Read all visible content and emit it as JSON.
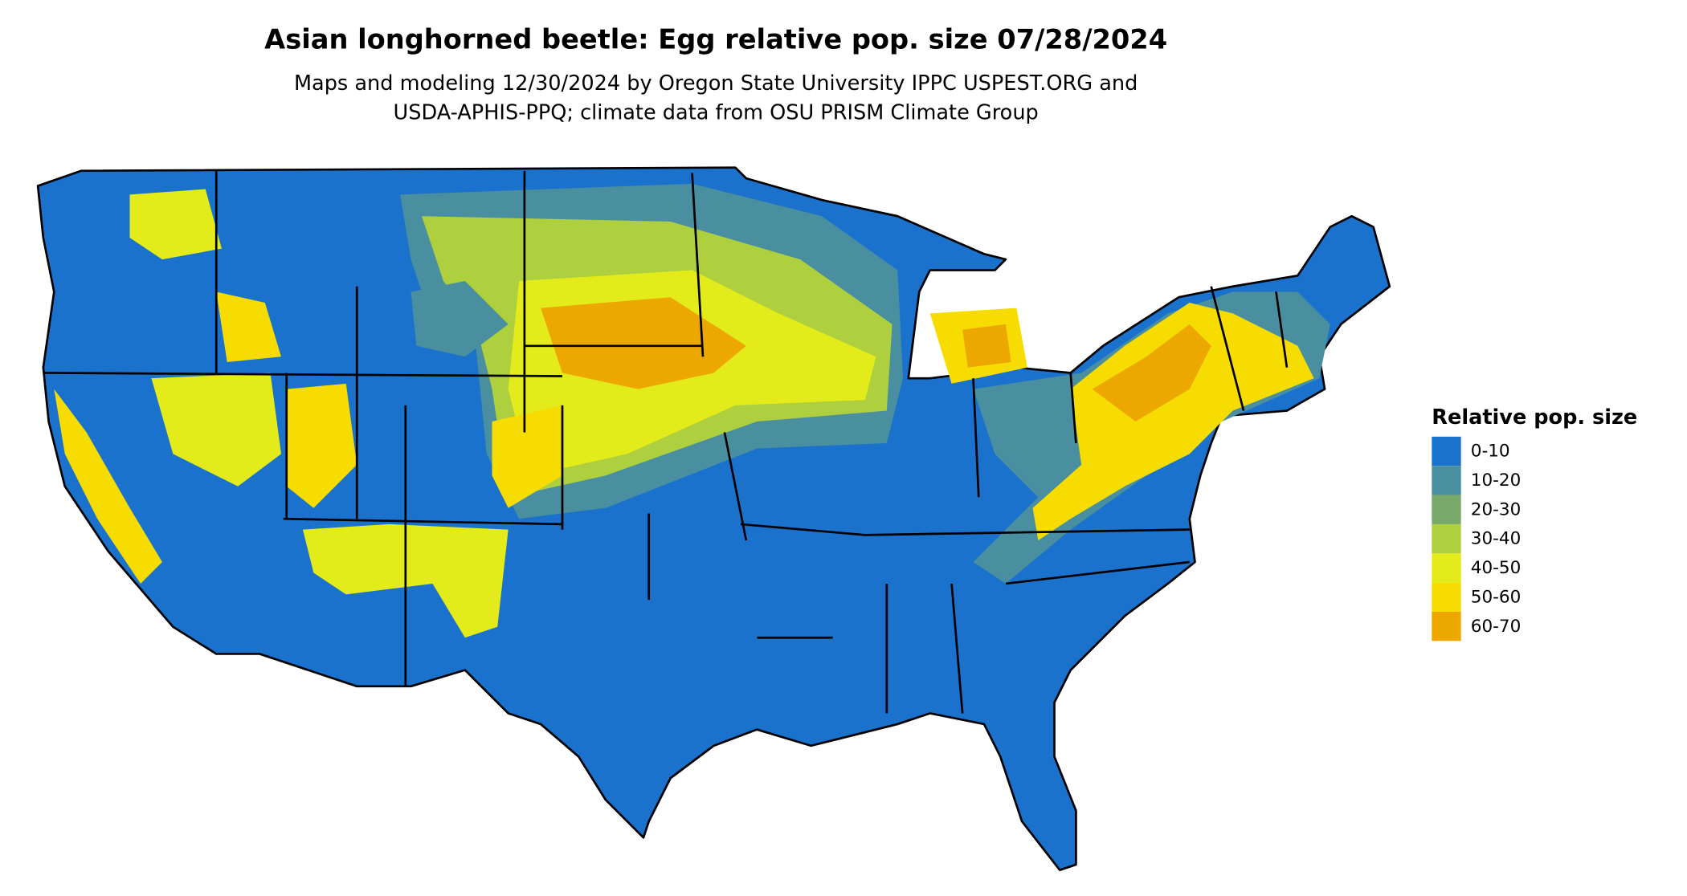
{
  "header": {
    "title": "Asian longhorned beetle: Egg relative pop. size 07/28/2024",
    "subtitle": [
      "Maps and modeling 12/30/2024 by Oregon State University IPPC USPEST.ORG and",
      "USDA-APHIS-PPQ; climate data from OSU PRISM Climate Group"
    ]
  },
  "legend": {
    "title": "Relative pop. size",
    "items": [
      {
        "label": "0-10",
        "color": "#1a72cc"
      },
      {
        "label": "10-20",
        "color": "#4a8fa0"
      },
      {
        "label": "20-30",
        "color": "#78a86a"
      },
      {
        "label": "30-40",
        "color": "#aecf3e"
      },
      {
        "label": "40-50",
        "color": "#e3ec1a"
      },
      {
        "label": "50-60",
        "color": "#f6dc00"
      },
      {
        "label": "60-70",
        "color": "#eda800"
      }
    ]
  }
}
